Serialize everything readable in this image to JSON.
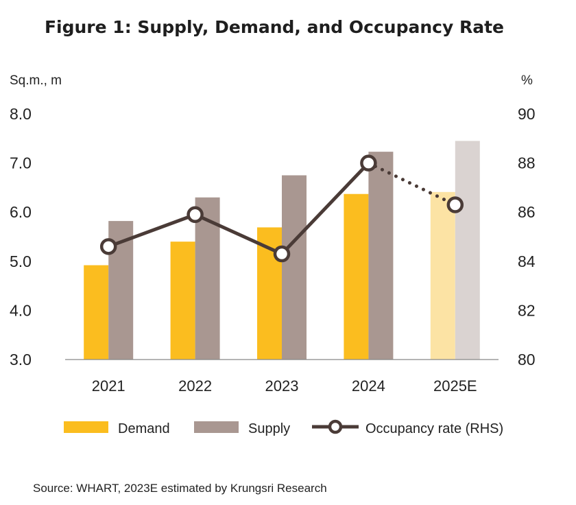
{
  "chart_data": {
    "type": "bar",
    "title": "Figure 1: Supply, Demand, and Occupancy Rate",
    "categories": [
      "2021",
      "2022",
      "2023",
      "2024",
      "2025E"
    ],
    "y_left": {
      "unit": "Sq.m., m",
      "ylim": [
        3.0,
        8.0
      ],
      "ticks": [
        "3.0",
        "4.0",
        "5.0",
        "6.0",
        "7.0",
        "8.0"
      ]
    },
    "y_right": {
      "unit": "%",
      "ylim": [
        80,
        90
      ],
      "ticks": [
        "80",
        "82",
        "84",
        "86",
        "88",
        "90"
      ]
    },
    "series": [
      {
        "name": "Demand",
        "kind": "bar",
        "axis": "left",
        "color": "#FBBD1F",
        "faded_color": "#FCE3A4",
        "values": [
          4.92,
          5.4,
          5.69,
          6.37,
          6.41
        ]
      },
      {
        "name": "Supply",
        "kind": "bar",
        "axis": "left",
        "color": "#A99791",
        "faded_color": "#DAD3D1",
        "values": [
          5.82,
          6.3,
          6.75,
          7.23,
          7.45
        ]
      },
      {
        "name": "Occupancy rate (RHS)",
        "kind": "line",
        "axis": "right",
        "color": "#4A3B37",
        "values": [
          84.6,
          85.9,
          84.3,
          88.0,
          86.3
        ]
      }
    ],
    "estimated_categories": [
      "2025E"
    ],
    "grid": false,
    "legend": "bottom"
  },
  "source": "Source: WHART, 2023E estimated by Krungsri Research"
}
